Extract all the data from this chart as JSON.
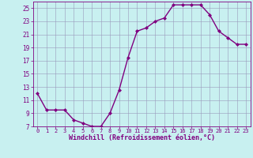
{
  "hours": [
    0,
    1,
    2,
    3,
    4,
    5,
    6,
    7,
    8,
    9,
    10,
    11,
    12,
    13,
    14,
    15,
    16,
    17,
    18,
    19,
    20,
    21,
    22,
    23
  ],
  "temps": [
    12.0,
    9.5,
    9.5,
    9.5,
    8.0,
    7.5,
    7.0,
    7.0,
    9.0,
    12.5,
    17.5,
    21.5,
    22.0,
    23.0,
    23.5,
    25.5,
    25.5,
    25.5,
    25.5,
    24.0,
    21.5,
    20.5,
    19.5,
    19.5
  ],
  "line_color": "#800080",
  "marker": "D",
  "marker_size": 2.0,
  "line_width": 1.0,
  "bg_color": "#c8f0f0",
  "grid_color": "#9999bb",
  "tick_color": "#800080",
  "label_color": "#800080",
  "xlabel": "Windchill (Refroidissement éolien,°C)",
  "ylim": [
    7,
    26
  ],
  "yticks": [
    7,
    9,
    11,
    13,
    15,
    17,
    19,
    21,
    23,
    25
  ],
  "xlim": [
    -0.5,
    23.5
  ]
}
